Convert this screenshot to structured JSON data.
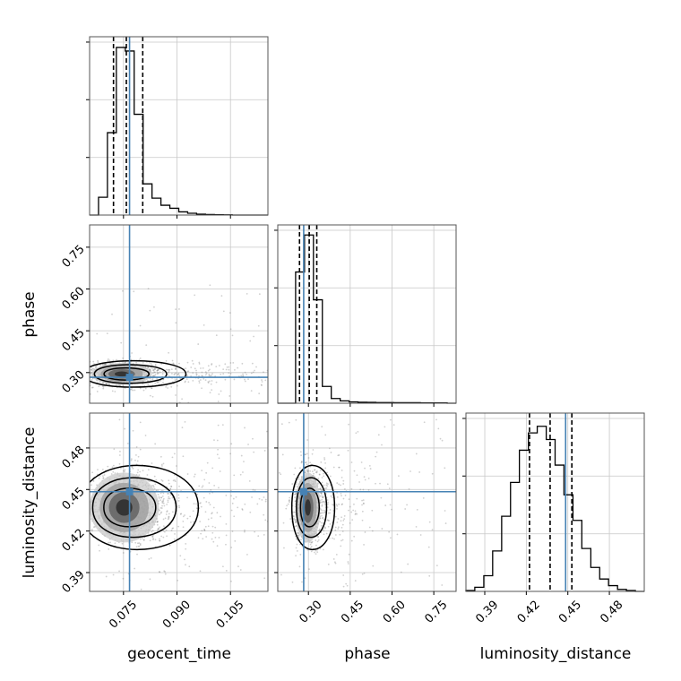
{
  "chart_data": {
    "type": "corner",
    "parameters": [
      "geocent_time",
      "phase",
      "luminosity_distance"
    ],
    "truth_color": "#4682b4",
    "grid": true,
    "panels": [
      {
        "kind": "histogram",
        "param": "geocent_time",
        "xlim": [
          0.0655,
          0.1155
        ],
        "truth": 0.0767,
        "quantiles": [
          0.0722,
          0.0758,
          0.0804
        ],
        "bin_edges": [
          0.0655,
          0.068,
          0.0705,
          0.073,
          0.0755,
          0.078,
          0.0805,
          0.083,
          0.0855,
          0.088,
          0.0905,
          0.093,
          0.0955,
          0.098,
          0.1005,
          0.103,
          0.1055,
          0.108,
          0.1105,
          0.113,
          0.1155
        ],
        "counts": [
          0,
          100,
          462,
          940,
          920,
          565,
          175,
          95,
          55,
          38,
          18,
          10,
          5,
          3,
          2,
          1,
          0,
          0,
          0,
          0
        ],
        "ylim": [
          0,
          1000
        ]
      },
      {
        "kind": "histogram",
        "param": "phase",
        "xlim": [
          0.19,
          0.83
        ],
        "truth": 0.283,
        "quantiles": [
          0.268,
          0.303,
          0.33
        ],
        "bin_edges": [
          0.19,
          0.222,
          0.254,
          0.286,
          0.318,
          0.35,
          0.382,
          0.414,
          0.446,
          0.478,
          0.51,
          0.542,
          0.574,
          0.606,
          0.638,
          0.67,
          0.702,
          0.734,
          0.766,
          0.798,
          0.83
        ],
        "counts": [
          0,
          0,
          780,
          1000,
          615,
          100,
          28,
          14,
          8,
          6,
          5,
          4,
          4,
          3,
          3,
          3,
          2,
          2,
          2,
          0
        ],
        "ylim": [
          0,
          1060
        ]
      },
      {
        "kind": "histogram",
        "param": "luminosity_distance",
        "xlim": [
          0.3764,
          0.5052
        ],
        "truth": 0.4484,
        "quantiles": [
          0.4223,
          0.4372,
          0.4529
        ],
        "bin_edges": [
          0.3764,
          0.3828,
          0.3893,
          0.3957,
          0.4022,
          0.4086,
          0.415,
          0.4215,
          0.4279,
          0.4344,
          0.4408,
          0.4472,
          0.4537,
          0.4601,
          0.4666,
          0.473,
          0.4794,
          0.4859,
          0.4923,
          0.4988,
          0.5052
        ],
        "counts": [
          5,
          25,
          95,
          245,
          455,
          660,
          855,
          960,
          1000,
          920,
          765,
          585,
          430,
          260,
          145,
          75,
          35,
          12,
          5,
          0
        ],
        "ylim": [
          0,
          1080
        ]
      },
      {
        "kind": "density2d",
        "x": "geocent_time",
        "y": "phase",
        "xlim": [
          0.0655,
          0.1155
        ],
        "ylim": [
          0.19,
          0.83
        ],
        "truth": [
          0.0767,
          0.283
        ],
        "center": [
          0.0745,
          0.295
        ],
        "spread": [
          0.0045,
          0.021
        ],
        "tail": "x"
      },
      {
        "kind": "density2d",
        "x": "geocent_time",
        "y": "luminosity_distance",
        "xlim": [
          0.0655,
          0.1155
        ],
        "ylim": [
          0.3764,
          0.5052
        ],
        "truth": [
          0.0767,
          0.4484
        ],
        "center": [
          0.0752,
          0.437
        ],
        "spread": [
          0.0052,
          0.0135
        ],
        "tail": "x"
      },
      {
        "kind": "density2d",
        "x": "phase",
        "y": "luminosity_distance",
        "xlim": [
          0.19,
          0.83
        ],
        "ylim": [
          0.3764,
          0.5052
        ],
        "truth": [
          0.283,
          0.4484
        ],
        "center": [
          0.298,
          0.437
        ],
        "spread": [
          0.024,
          0.0135
        ],
        "tail": "x"
      }
    ],
    "tick_labels": {
      "geocent_time": [
        "0.075",
        "0.090",
        "0.105"
      ],
      "phase": [
        "0.30",
        "0.45",
        "0.60",
        "0.75"
      ],
      "luminosity_distance": [
        "0.39",
        "0.42",
        "0.45",
        "0.48"
      ]
    },
    "axis_labels": {
      "row1_y": "phase",
      "row2_y": "luminosity_distance",
      "col0_x": "geocent_time",
      "col1_x": "phase",
      "col2_x": "luminosity_distance"
    }
  }
}
